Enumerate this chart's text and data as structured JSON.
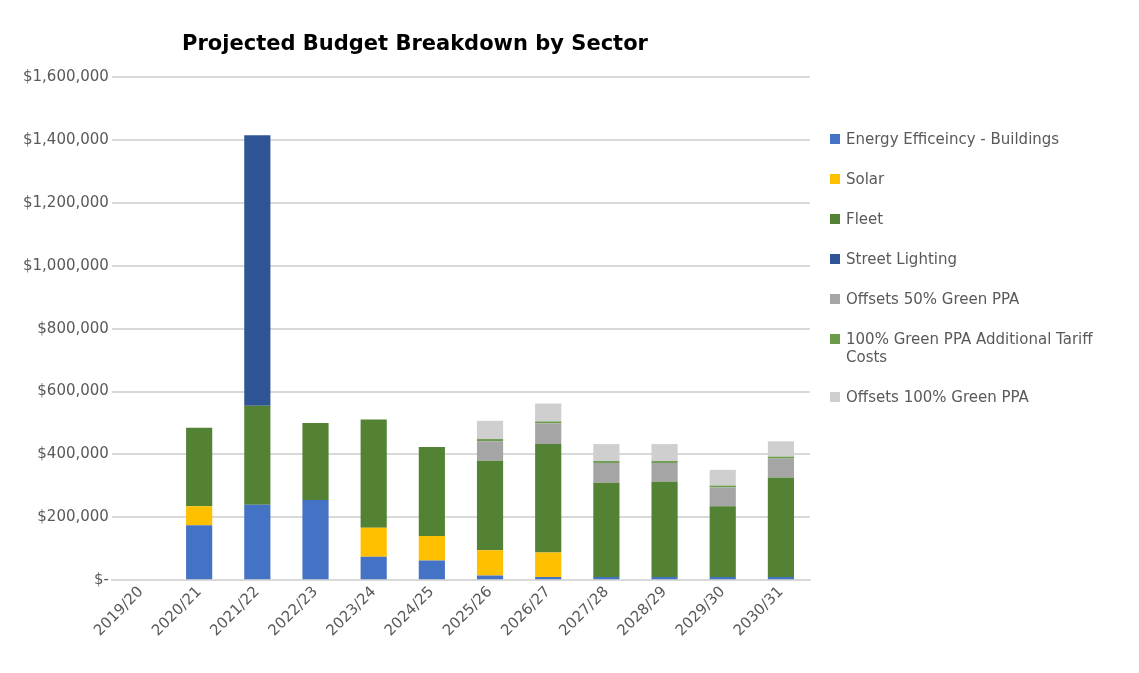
{
  "chart_data": {
    "type": "bar",
    "title": "Projected Budget Breakdown by Sector",
    "categories": [
      "2019/20",
      "2020/21",
      "2021/22",
      "2022/23",
      "2023/24",
      "2024/25",
      "2025/26",
      "2026/27",
      "2027/28",
      "2028/29",
      "2029/30",
      "2030/31"
    ],
    "stacked": true,
    "series": [
      {
        "name": "Energy Efficeincy - Buildings",
        "color": "#4472c4",
        "values": [
          0,
          175000,
          240000,
          255000,
          75000,
          63000,
          15000,
          10000,
          10000,
          10000,
          10000,
          10000
        ]
      },
      {
        "name": "Solar",
        "color": "#ffc000",
        "values": [
          0,
          60000,
          0,
          0,
          92000,
          78000,
          80000,
          78000,
          0,
          0,
          0,
          0
        ]
      },
      {
        "name": "Fleet",
        "color": "#548235",
        "values": [
          0,
          250000,
          315000,
          245000,
          344000,
          283000,
          285000,
          345000,
          300000,
          303000,
          225000,
          317000
        ]
      },
      {
        "name": "Street Lighting",
        "color": "#2f5597",
        "values": [
          0,
          0,
          860000,
          0,
          0,
          0,
          0,
          0,
          0,
          0,
          0,
          0
        ]
      },
      {
        "name": "Offsets 50% Green PPA",
        "color": "#a5a5a5",
        "values": [
          0,
          0,
          0,
          0,
          0,
          0,
          62000,
          66000,
          63000,
          60000,
          60000,
          60000
        ]
      },
      {
        "name": "100% Green PPA Additional Tariff Costs",
        "color": "#6a9a4a",
        "values": [
          0,
          0,
          0,
          0,
          0,
          0,
          7000,
          6000,
          6000,
          6000,
          6000,
          6000
        ]
      },
      {
        "name": "Offsets 100% Green PPA",
        "color": "#cfcfcf",
        "values": [
          0,
          0,
          0,
          0,
          0,
          0,
          58000,
          57000,
          54000,
          54000,
          50000,
          49000
        ]
      }
    ],
    "ylim": [
      0,
      1600000
    ],
    "yticks": [
      {
        "value": 0,
        "label": "$-"
      },
      {
        "value": 200000,
        "label": "$200,000"
      },
      {
        "value": 400000,
        "label": "$400,000"
      },
      {
        "value": 600000,
        "label": "$600,000"
      },
      {
        "value": 800000,
        "label": "$800,000"
      },
      {
        "value": 1000000,
        "label": "$1,000,000"
      },
      {
        "value": 1200000,
        "label": "$1,200,000"
      },
      {
        "value": 1400000,
        "label": "$1,400,000"
      },
      {
        "value": 1600000,
        "label": "$1,600,000"
      }
    ],
    "grid": "y",
    "legend": "right"
  }
}
